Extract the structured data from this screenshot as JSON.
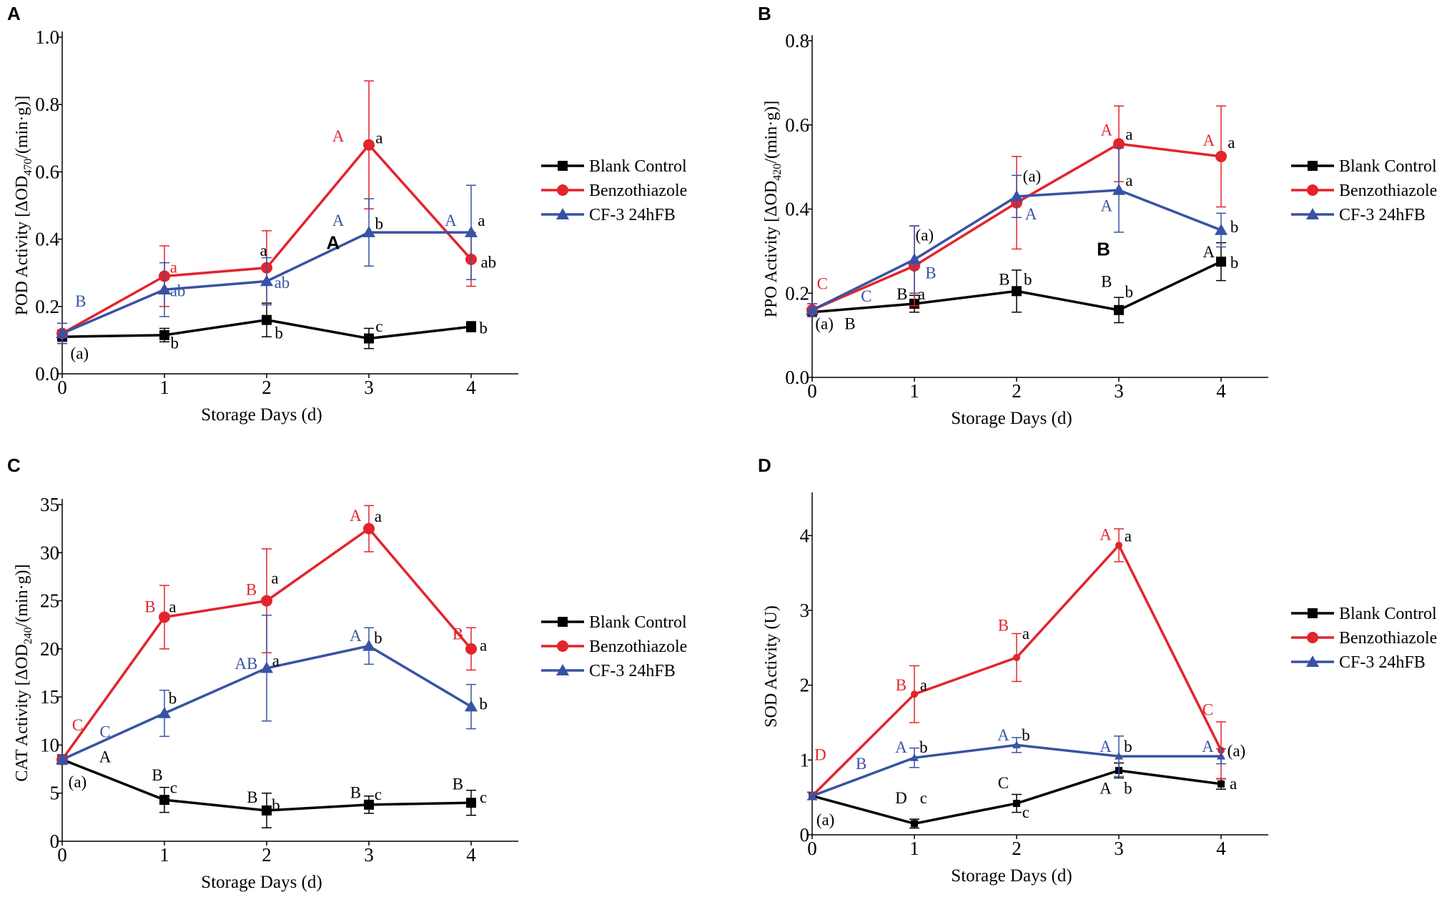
{
  "colors": {
    "Blank Control": "#000000",
    "Benzothiazole": "#e3242b",
    "CF-3 24hFB": "#3853a4"
  },
  "chart_data": [
    {
      "panel": "A",
      "type": "line",
      "title": "",
      "ylabel_parts": [
        "POD Activity [ΔOD",
        "470",
        "/(min·g)]"
      ],
      "xlabel": "Storage Days (d)",
      "x": [
        0,
        1,
        2,
        3,
        4
      ],
      "xticks": [
        "0",
        "1",
        "2",
        "3",
        "4"
      ],
      "ylim": [
        0,
        1.0
      ],
      "yticks": [
        "0.0",
        "0.2",
        "0.4",
        "0.6",
        "0.8",
        "1.0"
      ],
      "series": [
        {
          "name": "Blank Control",
          "marker": "square",
          "values": [
            0.11,
            0.115,
            0.16,
            0.105,
            0.14
          ],
          "errors": [
            0.02,
            0.02,
            0.05,
            0.03,
            0.015
          ]
        },
        {
          "name": "Benzothiazole",
          "marker": "circle",
          "values": [
            0.12,
            0.29,
            0.315,
            0.68,
            0.34
          ],
          "errors": [
            0.03,
            0.09,
            0.11,
            0.19,
            0.08
          ]
        },
        {
          "name": "CF-3 24hFB",
          "marker": "triangle",
          "values": [
            0.12,
            0.25,
            0.275,
            0.42,
            0.42
          ],
          "errors": [
            0.03,
            0.08,
            0.07,
            0.1,
            0.14
          ]
        }
      ],
      "annotations": [
        {
          "text": "B",
          "series": "CF-3 24hFB",
          "x": 0.18,
          "y": 0.2
        },
        {
          "text": "(a)",
          "series": "Blank Control",
          "x": 0.17,
          "y": 0.045
        },
        {
          "text": "a",
          "series": "Benzothiazole",
          "x": 1.09,
          "y": 0.3
        },
        {
          "text": "ab",
          "series": "CF-3 24hFB",
          "x": 1.13,
          "y": 0.23
        },
        {
          "text": "b",
          "series": "Blank Control",
          "x": 1.1,
          "y": 0.075
        },
        {
          "text": "a",
          "series": "Blank Control",
          "x": 1.97,
          "y": 0.35
        },
        {
          "text": "ab",
          "series": "CF-3 24hFB",
          "x": 2.15,
          "y": 0.255
        },
        {
          "text": "b",
          "series": "Blank Control",
          "x": 2.12,
          "y": 0.105
        },
        {
          "text": "A",
          "series": "Benzothiazole",
          "x": 2.7,
          "y": 0.69
        },
        {
          "text": "a",
          "series": "Blank Control",
          "x": 3.1,
          "y": 0.685
        },
        {
          "text": "A",
          "series": "CF-3 24hFB",
          "x": 2.7,
          "y": 0.44
        },
        {
          "text": "b",
          "series": "Blank Control",
          "x": 3.1,
          "y": 0.43
        },
        {
          "text": "c",
          "series": "Blank Control",
          "x": 3.1,
          "y": 0.125
        },
        {
          "text": "A",
          "series": "CF-3 24hFB",
          "x": 3.8,
          "y": 0.44
        },
        {
          "text": "a",
          "series": "Blank Control",
          "x": 4.1,
          "y": 0.44
        },
        {
          "text": "ab",
          "series": "Blank Control",
          "x": 4.17,
          "y": 0.315
        },
        {
          "text": "b",
          "series": "Blank Control",
          "x": 4.12,
          "y": 0.12
        }
      ],
      "extra_labels": [
        {
          "text": "A",
          "x": 2.65,
          "y": 0.37
        }
      ]
    },
    {
      "panel": "B",
      "type": "line",
      "title": "",
      "ylabel_parts": [
        "PPO Activity [ΔOD",
        "420",
        "/(min·g)]"
      ],
      "xlabel": "Storage Days (d)",
      "x": [
        0,
        1,
        2,
        3,
        4
      ],
      "xticks": [
        "0",
        "1",
        "2",
        "3",
        "4"
      ],
      "ylim": [
        0,
        0.8
      ],
      "yticks": [
        "0.0",
        "0.2",
        "0.4",
        "0.6",
        "0.8"
      ],
      "series": [
        {
          "name": "Blank Control",
          "marker": "square",
          "values": [
            0.155,
            0.175,
            0.205,
            0.16,
            0.275
          ],
          "errors": [
            0.01,
            0.02,
            0.05,
            0.03,
            0.045
          ]
        },
        {
          "name": "Benzothiazole",
          "marker": "circle",
          "values": [
            0.16,
            0.265,
            0.415,
            0.555,
            0.525
          ],
          "errors": [
            0.015,
            0.095,
            0.11,
            0.09,
            0.12
          ]
        },
        {
          "name": "CF-3 24hFB",
          "marker": "triangle",
          "values": [
            0.16,
            0.28,
            0.43,
            0.445,
            0.35
          ],
          "errors": [
            0.015,
            0.08,
            0.05,
            0.1,
            0.04
          ]
        }
      ],
      "annotations": [
        {
          "text": "C",
          "series": "Benzothiazole",
          "x": 0.1,
          "y": 0.21
        },
        {
          "text": "C",
          "series": "CF-3 24hFB",
          "x": 0.53,
          "y": 0.18
        },
        {
          "text": "(a)",
          "series": "Blank Control",
          "x": 0.12,
          "y": 0.115
        },
        {
          "text": "B",
          "series": "Blank Control",
          "x": 0.37,
          "y": 0.115
        },
        {
          "text": "(a)",
          "series": "Blank Control",
          "x": 1.1,
          "y": 0.325
        },
        {
          "text": "B",
          "series": "CF-3 24hFB",
          "x": 1.16,
          "y": 0.235
        },
        {
          "text": "B",
          "series": "Blank Control",
          "x": 0.88,
          "y": 0.185
        },
        {
          "text": "a",
          "series": "Blank Control",
          "x": 1.07,
          "y": 0.185
        },
        {
          "text": "(a)",
          "series": "Blank Control",
          "x": 2.15,
          "y": 0.465
        },
        {
          "text": "A",
          "series": "CF-3 24hFB",
          "x": 2.14,
          "y": 0.375
        },
        {
          "text": "B",
          "series": "Blank Control",
          "x": 1.88,
          "y": 0.22
        },
        {
          "text": "b",
          "series": "Blank Control",
          "x": 2.11,
          "y": 0.22
        },
        {
          "text": "A",
          "series": "Benzothiazole",
          "x": 2.88,
          "y": 0.575
        },
        {
          "text": "a",
          "series": "Blank Control",
          "x": 3.1,
          "y": 0.565
        },
        {
          "text": "a",
          "series": "Blank Control",
          "x": 3.1,
          "y": 0.455
        },
        {
          "text": "A",
          "series": "CF-3 24hFB",
          "x": 2.88,
          "y": 0.395
        },
        {
          "text": "B",
          "series": "Blank Control",
          "x": 2.88,
          "y": 0.215
        },
        {
          "text": "b",
          "series": "Blank Control",
          "x": 3.1,
          "y": 0.19
        },
        {
          "text": "A",
          "series": "Benzothiazole",
          "x": 3.88,
          "y": 0.55
        },
        {
          "text": "a",
          "series": "Blank Control",
          "x": 4.1,
          "y": 0.545
        },
        {
          "text": "b",
          "series": "Blank Control",
          "x": 4.13,
          "y": 0.345
        },
        {
          "text": "A",
          "series": "Blank Control",
          "x": 3.88,
          "y": 0.285
        },
        {
          "text": "b",
          "series": "Blank Control",
          "x": 4.13,
          "y": 0.26
        }
      ],
      "extra_labels": [
        {
          "text": "B",
          "x": 2.85,
          "y": 0.29
        }
      ]
    },
    {
      "panel": "C",
      "type": "line",
      "title": "",
      "ylabel_parts": [
        "CAT Activity [ΔOD",
        "240",
        "/(min·g)]"
      ],
      "xlabel": "Storage Days (d)",
      "x": [
        0,
        1,
        2,
        3,
        4
      ],
      "xticks": [
        "0",
        "1",
        "2",
        "3",
        "4"
      ],
      "ylim": [
        0,
        35
      ],
      "yticks": [
        "0",
        "5",
        "10",
        "15",
        "20",
        "25",
        "30",
        "35"
      ],
      "series": [
        {
          "name": "Blank Control",
          "marker": "square",
          "values": [
            8.5,
            4.3,
            3.2,
            3.8,
            4.0
          ],
          "errors": [
            0.5,
            1.3,
            1.8,
            0.9,
            1.3
          ]
        },
        {
          "name": "Benzothiazole",
          "marker": "circle",
          "values": [
            8.5,
            23.3,
            25.0,
            32.5,
            20.0
          ],
          "errors": [
            0.5,
            3.3,
            5.4,
            2.4,
            2.2
          ]
        },
        {
          "name": "CF-3 24hFB",
          "marker": "triangle",
          "values": [
            8.5,
            13.3,
            18.0,
            20.3,
            14.0
          ],
          "errors": [
            0.5,
            2.4,
            5.5,
            1.9,
            2.3
          ]
        }
      ],
      "annotations": [
        {
          "text": "C",
          "series": "Benzothiazole",
          "x": 0.15,
          "y": 11.5
        },
        {
          "text": "C",
          "series": "CF-3 24hFB",
          "x": 0.42,
          "y": 10.8
        },
        {
          "text": "A",
          "series": "Blank Control",
          "x": 0.42,
          "y": 8.2
        },
        {
          "text": "(a)",
          "series": "Blank Control",
          "x": 0.15,
          "y": 5.6
        },
        {
          "text": "B",
          "series": "Benzothiazole",
          "x": 0.86,
          "y": 23.8
        },
        {
          "text": "a",
          "series": "Blank Control",
          "x": 1.08,
          "y": 23.8
        },
        {
          "text": "b",
          "series": "Blank Control",
          "x": 1.08,
          "y": 14.3
        },
        {
          "text": "B",
          "series": "Blank Control",
          "x": 0.93,
          "y": 6.3
        },
        {
          "text": "c",
          "series": "Blank Control",
          "x": 1.09,
          "y": 5.0
        },
        {
          "text": "B",
          "series": "Benzothiazole",
          "x": 1.85,
          "y": 25.6
        },
        {
          "text": "a",
          "series": "Blank Control",
          "x": 2.08,
          "y": 26.8
        },
        {
          "text": "AB",
          "series": "CF-3 24hFB",
          "x": 1.8,
          "y": 17.9
        },
        {
          "text": "a",
          "series": "Blank Control",
          "x": 2.09,
          "y": 18.2
        },
        {
          "text": "B",
          "series": "Blank Control",
          "x": 1.86,
          "y": 4.0
        },
        {
          "text": "b",
          "series": "Blank Control",
          "x": 2.09,
          "y": 3.2
        },
        {
          "text": "A",
          "series": "Benzothiazole",
          "x": 2.87,
          "y": 33.3
        },
        {
          "text": "a",
          "series": "Blank Control",
          "x": 3.09,
          "y": 33.2
        },
        {
          "text": "A",
          "series": "CF-3 24hFB",
          "x": 2.87,
          "y": 20.8
        },
        {
          "text": "b",
          "series": "Blank Control",
          "x": 3.09,
          "y": 20.6
        },
        {
          "text": "B",
          "series": "Blank Control",
          "x": 2.87,
          "y": 4.5
        },
        {
          "text": "c",
          "series": "Blank Control",
          "x": 3.09,
          "y": 4.3
        },
        {
          "text": "B",
          "series": "Benzothiazole",
          "x": 3.87,
          "y": 21.0
        },
        {
          "text": "a",
          "series": "Blank Control",
          "x": 4.12,
          "y": 19.8
        },
        {
          "text": "b",
          "series": "Blank Control",
          "x": 4.12,
          "y": 13.7
        },
        {
          "text": "B",
          "series": "Blank Control",
          "x": 3.87,
          "y": 5.4
        },
        {
          "text": "c",
          "series": "Blank Control",
          "x": 4.12,
          "y": 4.0
        }
      ],
      "extra_labels": []
    },
    {
      "panel": "D",
      "type": "line",
      "title": "",
      "ylabel_parts": [
        "SOD Activity (U)"
      ],
      "xlabel": "Storage Days (d)",
      "x": [
        0,
        1,
        2,
        3,
        4
      ],
      "xticks": [
        "0",
        "1",
        "2",
        "3",
        "4"
      ],
      "ylim": [
        0,
        4.5
      ],
      "yticks": [
        "0",
        "1",
        "2",
        "3",
        "4"
      ],
      "series": [
        {
          "name": "Blank Control",
          "marker": "square",
          "values": [
            0.52,
            0.15,
            0.42,
            0.86,
            0.68
          ],
          "errors": [
            0.05,
            0.06,
            0.12,
            0.1,
            0.07
          ]
        },
        {
          "name": "Benzothiazole",
          "marker": "circle",
          "values": [
            0.52,
            1.88,
            2.37,
            3.87,
            1.13
          ],
          "errors": [
            0.05,
            0.38,
            0.32,
            0.22,
            0.38
          ]
        },
        {
          "name": "CF-3 24hFB",
          "marker": "triangle",
          "values": [
            0.52,
            1.03,
            1.2,
            1.05,
            1.05
          ],
          "errors": [
            0.05,
            0.13,
            0.1,
            0.27,
            0.1
          ]
        }
      ],
      "annotations": [
        {
          "text": "D",
          "series": "Benzothiazole",
          "x": 0.08,
          "y": 1.0
        },
        {
          "text": "B",
          "series": "CF-3 24hFB",
          "x": 0.48,
          "y": 0.88
        },
        {
          "text": "(a)",
          "series": "Blank Control",
          "x": 0.13,
          "y": 0.13
        },
        {
          "text": "B",
          "series": "Benzothiazole",
          "x": 0.87,
          "y": 1.93
        },
        {
          "text": "a",
          "series": "Blank Control",
          "x": 1.09,
          "y": 1.93
        },
        {
          "text": "A",
          "series": "CF-3 24hFB",
          "x": 0.87,
          "y": 1.1
        },
        {
          "text": "b",
          "series": "Blank Control",
          "x": 1.09,
          "y": 1.1
        },
        {
          "text": "D",
          "series": "Blank Control",
          "x": 0.87,
          "y": 0.42
        },
        {
          "text": "c",
          "series": "Blank Control",
          "x": 1.09,
          "y": 0.42
        },
        {
          "text": "B",
          "series": "Benzothiazole",
          "x": 1.87,
          "y": 2.73
        },
        {
          "text": "a",
          "series": "Blank Control",
          "x": 2.09,
          "y": 2.62
        },
        {
          "text": "A",
          "series": "CF-3 24hFB",
          "x": 1.87,
          "y": 1.26
        },
        {
          "text": "b",
          "series": "Blank Control",
          "x": 2.09,
          "y": 1.26
        },
        {
          "text": "C",
          "series": "Blank Control",
          "x": 1.87,
          "y": 0.62
        },
        {
          "text": "c",
          "series": "Blank Control",
          "x": 2.09,
          "y": 0.23
        },
        {
          "text": "A",
          "series": "Benzothiazole",
          "x": 2.87,
          "y": 3.94
        },
        {
          "text": "a",
          "series": "Blank Control",
          "x": 3.09,
          "y": 3.92
        },
        {
          "text": "A",
          "series": "CF-3 24hFB",
          "x": 2.87,
          "y": 1.11
        },
        {
          "text": "b",
          "series": "Blank Control",
          "x": 3.09,
          "y": 1.11
        },
        {
          "text": "A",
          "series": "Blank Control",
          "x": 2.87,
          "y": 0.55
        },
        {
          "text": "b",
          "series": "Blank Control",
          "x": 3.09,
          "y": 0.55
        },
        {
          "text": "C",
          "series": "Benzothiazole",
          "x": 3.87,
          "y": 1.6
        },
        {
          "text": "A",
          "series": "CF-3 24hFB",
          "x": 3.87,
          "y": 1.11
        },
        {
          "text": "(a)",
          "series": "Blank Control",
          "x": 4.15,
          "y": 1.05
        },
        {
          "text": "a",
          "series": "Blank Control",
          "x": 4.12,
          "y": 0.61
        }
      ],
      "extra_labels": []
    }
  ]
}
